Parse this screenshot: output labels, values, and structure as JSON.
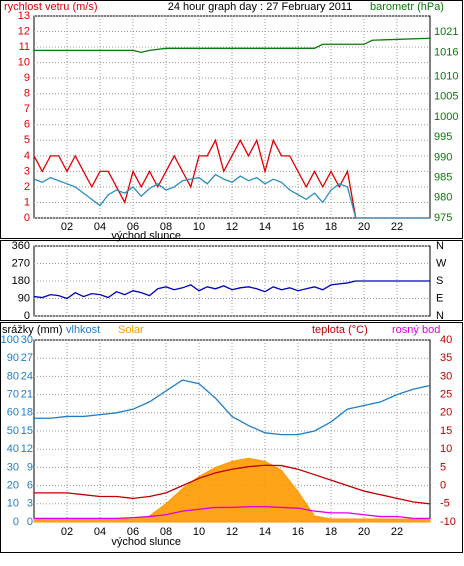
{
  "chart_data": [
    {
      "type": "line",
      "title": "24 hour graph day : 27 February 2011",
      "xlim": [
        0,
        24
      ],
      "xticks": [
        {
          "value": 2,
          "label": "02"
        },
        {
          "value": 4,
          "label": "04"
        },
        {
          "value": 6,
          "label": "06"
        },
        {
          "value": 8,
          "label": "08"
        },
        {
          "value": 10,
          "label": "10"
        },
        {
          "value": 12,
          "label": "12"
        },
        {
          "value": 14,
          "label": "14"
        },
        {
          "value": 16,
          "label": "16"
        },
        {
          "value": 18,
          "label": "18"
        },
        {
          "value": 20,
          "label": "20"
        },
        {
          "value": 22,
          "label": "22"
        }
      ],
      "ylim": [
        0,
        13
      ],
      "yticks": [
        0,
        1,
        2,
        3,
        4,
        5,
        6,
        7,
        8,
        9,
        10,
        11,
        12,
        13
      ],
      "y2lim": [
        975,
        1025
      ],
      "y2ticks": [
        975,
        980,
        985,
        990,
        995,
        1000,
        1005,
        1010,
        1016,
        1021
      ],
      "grid": true,
      "annotations": [
        {
          "text": "východ slunce",
          "x": 6.8
        }
      ],
      "series": [
        {
          "name": "rychlost vetru (m/s)",
          "color": "#e00000",
          "axis": "y",
          "x": [
            0,
            0.5,
            1,
            1.5,
            2,
            2.5,
            3,
            3.5,
            4,
            4.5,
            5,
            5.5,
            6,
            6.5,
            7,
            7.5,
            8,
            8.5,
            9,
            9.5,
            10,
            10.5,
            11,
            11.5,
            12,
            12.5,
            13,
            13.5,
            14,
            14.5,
            15,
            15.5,
            16,
            16.5,
            17,
            17.5,
            18,
            18.5,
            19,
            19.5,
            24
          ],
          "values": [
            4,
            3,
            4,
            4,
            3,
            4,
            3,
            2,
            3,
            3,
            2,
            1,
            3,
            2,
            3,
            2,
            3,
            4,
            3,
            2,
            4,
            4,
            5,
            3,
            4,
            5,
            4,
            5,
            3,
            5,
            4,
            4,
            3,
            2,
            3,
            2,
            3,
            2,
            3,
            0,
            0
          ]
        },
        {
          "color": "#2a8fbd",
          "axis": "y",
          "x": [
            0,
            0.5,
            1,
            1.5,
            2,
            2.5,
            3,
            3.5,
            4,
            4.5,
            5,
            5.5,
            6,
            6.5,
            7,
            7.5,
            8,
            8.5,
            9,
            9.5,
            10,
            10.5,
            11,
            11.5,
            12,
            12.5,
            13,
            13.5,
            14,
            14.5,
            15,
            15.5,
            16,
            16.5,
            17,
            17.5,
            18,
            18.5,
            19,
            19.5,
            24
          ],
          "values": [
            2.5,
            2.3,
            2.6,
            2.4,
            2.2,
            2.0,
            1.6,
            1.2,
            0.8,
            1.5,
            1.8,
            1.6,
            2.0,
            1.4,
            1.9,
            2.2,
            1.8,
            2.0,
            2.4,
            2.5,
            2.6,
            2.2,
            2.8,
            2.5,
            2.3,
            2.7,
            2.4,
            2.6,
            2.2,
            2.5,
            2.3,
            1.8,
            1.5,
            1.2,
            1.6,
            1.0,
            1.8,
            2.2,
            2.0,
            0,
            0
          ]
        },
        {
          "name": "barometr (hPa)",
          "color": "#0a7a0a",
          "axis": "y2",
          "x": [
            0,
            6,
            6.5,
            7,
            8,
            17,
            17.5,
            20,
            20.5,
            24
          ],
          "values": [
            1016.5,
            1016.5,
            1016,
            1016.5,
            1017,
            1017,
            1018,
            1018,
            1019,
            1019.5
          ]
        }
      ]
    },
    {
      "type": "line",
      "xlim": [
        0,
        24
      ],
      "ylim": [
        0,
        360
      ],
      "yticks": [
        0,
        90,
        180,
        270,
        360
      ],
      "y2lim": [
        0,
        360
      ],
      "y2ticks": [
        {
          "value": 0,
          "label": "N"
        },
        {
          "value": 90,
          "label": "E"
        },
        {
          "value": 180,
          "label": "S"
        },
        {
          "value": 270,
          "label": "W"
        },
        {
          "value": 360,
          "label": "N"
        }
      ],
      "grid": true,
      "series": [
        {
          "color": "#0000c0",
          "axis": "y",
          "x": [
            0,
            0.5,
            1,
            1.5,
            2,
            2.5,
            3,
            3.5,
            4,
            4.5,
            5,
            5.5,
            6,
            6.5,
            7,
            7.5,
            8,
            8.5,
            9,
            9.5,
            10,
            10.5,
            11,
            11.5,
            12,
            12.5,
            13,
            13.5,
            14,
            14.5,
            15,
            15.5,
            16,
            16.5,
            17,
            17.5,
            18,
            18.5,
            19,
            19.5,
            24
          ],
          "values": [
            100,
            95,
            110,
            105,
            90,
            120,
            100,
            115,
            110,
            95,
            125,
            110,
            130,
            120,
            105,
            140,
            150,
            135,
            145,
            160,
            130,
            150,
            140,
            155,
            135,
            145,
            150,
            140,
            125,
            150,
            135,
            145,
            130,
            140,
            150,
            135,
            160,
            165,
            170,
            180,
            180
          ]
        }
      ]
    },
    {
      "type": "line",
      "xlim": [
        0,
        24
      ],
      "xticks": [
        {
          "value": 2,
          "label": "02"
        },
        {
          "value": 4,
          "label": "04"
        },
        {
          "value": 6,
          "label": "06"
        },
        {
          "value": 8,
          "label": "08"
        },
        {
          "value": 10,
          "label": "10"
        },
        {
          "value": 12,
          "label": "12"
        },
        {
          "value": 14,
          "label": "14"
        },
        {
          "value": 16,
          "label": "16"
        },
        {
          "value": 18,
          "label": "18"
        },
        {
          "value": 20,
          "label": "20"
        },
        {
          "value": 22,
          "label": "22"
        }
      ],
      "ylim": [
        0,
        100
      ],
      "yticks": [
        0,
        10,
        20,
        30,
        40,
        50,
        60,
        70,
        80,
        90,
        100
      ],
      "y3lim": [
        0,
        30
      ],
      "y3ticks": [
        0,
        3,
        6,
        9,
        12,
        15,
        18,
        21,
        24,
        27,
        30
      ],
      "y2lim": [
        -10,
        40
      ],
      "y2ticks": [
        -10,
        -5,
        0,
        5,
        10,
        15,
        20,
        25,
        30,
        35,
        40
      ],
      "axis_label": "srážky (mm)",
      "grid": true,
      "annotations": [
        {
          "text": "východ slunce",
          "x": 6.8
        }
      ],
      "series": [
        {
          "name": "Solar",
          "color": "#ff9900",
          "axis": "y3",
          "style": "area",
          "x": [
            0,
            1,
            2,
            3,
            4,
            5,
            6,
            7,
            8,
            9,
            10,
            11,
            12,
            13,
            14,
            15,
            16,
            17,
            18,
            19,
            20,
            21,
            22,
            23,
            24
          ],
          "values": [
            0.5,
            0.5,
            0.5,
            0.5,
            0.5,
            0.5,
            0.5,
            1,
            3,
            5.5,
            7.5,
            9,
            10,
            10.5,
            10,
            8.5,
            5,
            1,
            0.5,
            0.5,
            0.5,
            0.5,
            0.5,
            0.5,
            0.5
          ]
        },
        {
          "name": "vlhkost",
          "color": "#1e7fc8",
          "axis": "y",
          "x": [
            0,
            1,
            2,
            3,
            4,
            5,
            6,
            7,
            8,
            9,
            10,
            11,
            12,
            13,
            14,
            15,
            16,
            17,
            18,
            19,
            20,
            21,
            22,
            23,
            24
          ],
          "values": [
            57,
            57,
            58,
            58,
            59,
            60,
            62,
            66,
            72,
            78,
            76,
            68,
            58,
            53,
            49,
            48,
            48,
            50,
            55,
            62,
            64,
            66,
            70,
            73,
            75
          ]
        },
        {
          "name": "teplota (°C)",
          "color": "#c00000",
          "axis": "y2",
          "x": [
            0,
            1,
            2,
            3,
            4,
            5,
            6,
            7,
            8,
            9,
            10,
            11,
            12,
            13,
            14,
            15,
            16,
            17,
            18,
            19,
            20,
            21,
            22,
            23,
            24
          ],
          "values": [
            -2,
            -2,
            -2,
            -2.5,
            -3,
            -3,
            -3.5,
            -3,
            -2,
            0,
            2,
            3.5,
            4.5,
            5.2,
            5.6,
            5.5,
            4.5,
            3,
            1.5,
            0,
            -1.5,
            -2.5,
            -3.5,
            -4.5,
            -5
          ]
        },
        {
          "name": "rosný bod",
          "color": "#e000e0",
          "axis": "y2",
          "x": [
            0,
            1,
            2,
            3,
            4,
            5,
            6,
            7,
            8,
            9,
            10,
            11,
            12,
            13,
            14,
            15,
            16,
            17,
            18,
            19,
            20,
            21,
            22,
            23,
            24
          ],
          "values": [
            -9,
            -9,
            -9,
            -9,
            -9,
            -9,
            -8.8,
            -8.5,
            -8,
            -7,
            -6.5,
            -6,
            -6,
            -5.8,
            -5.8,
            -6,
            -6.2,
            -7,
            -7.5,
            -7.5,
            -8,
            -8.5,
            -8.5,
            -9,
            -9
          ]
        }
      ]
    }
  ]
}
